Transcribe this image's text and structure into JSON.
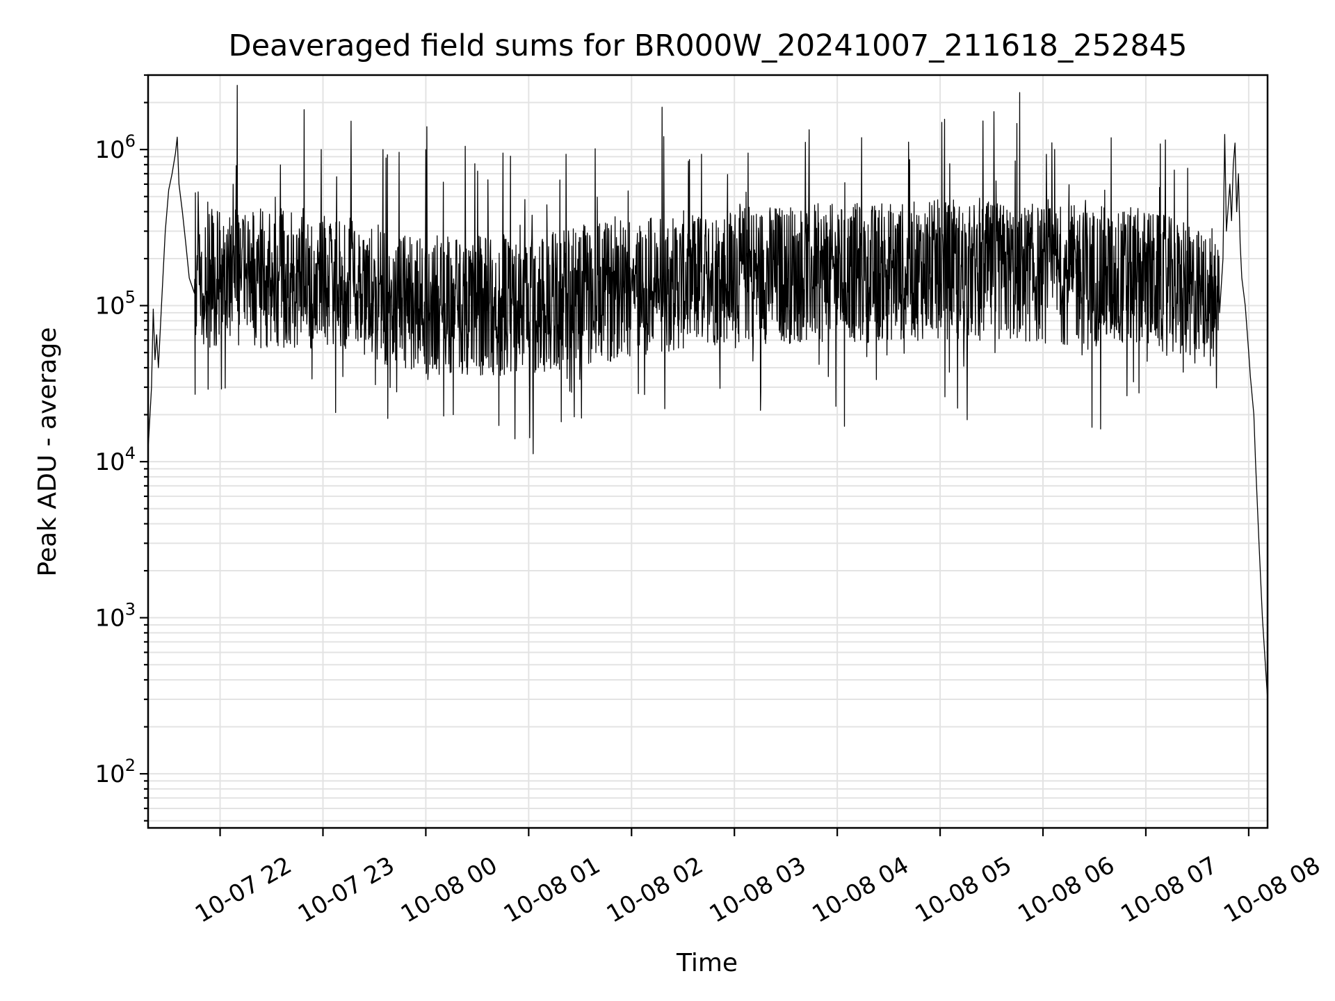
{
  "chart_data": {
    "type": "line",
    "title": "Deaveraged field sums for BR000W_20241007_211618_252845",
    "xlabel": "Time",
    "ylabel": "Peak ADU - average",
    "yscale": "log",
    "ylim": [
      45,
      3000000
    ],
    "xlim": [
      "2024-10-07T21:18:00",
      "2024-10-08T08:11:00"
    ],
    "x_ticks": [
      {
        "value": "2024-10-07T22:00:00",
        "label": "10-07 22"
      },
      {
        "value": "2024-10-07T23:00:00",
        "label": "10-07 23"
      },
      {
        "value": "2024-10-08T00:00:00",
        "label": "10-08 00"
      },
      {
        "value": "2024-10-08T01:00:00",
        "label": "10-08 01"
      },
      {
        "value": "2024-10-08T02:00:00",
        "label": "10-08 02"
      },
      {
        "value": "2024-10-08T03:00:00",
        "label": "10-08 03"
      },
      {
        "value": "2024-10-08T04:00:00",
        "label": "10-08 04"
      },
      {
        "value": "2024-10-08T05:00:00",
        "label": "10-08 05"
      },
      {
        "value": "2024-10-08T06:00:00",
        "label": "10-08 06"
      },
      {
        "value": "2024-10-08T07:00:00",
        "label": "10-08 07"
      },
      {
        "value": "2024-10-08T08:00:00",
        "label": "10-08 08"
      }
    ],
    "y_ticks": [
      {
        "value": 100,
        "base": "10",
        "exp": "2"
      },
      {
        "value": 1000,
        "base": "10",
        "exp": "3"
      },
      {
        "value": 10000,
        "base": "10",
        "exp": "4"
      },
      {
        "value": 100000,
        "base": "10",
        "exp": "5"
      },
      {
        "value": 1000000,
        "base": "10",
        "exp": "6"
      }
    ],
    "grid": true,
    "grid_minor_y": true,
    "line_color": "#000000",
    "series": [
      {
        "points": [
          [
            "2024-10-07T21:18:00",
            12000
          ],
          [
            "2024-10-07T21:20:00",
            30000
          ],
          [
            "2024-10-07T21:21:00",
            95000
          ],
          [
            "2024-10-07T21:22:00",
            45000
          ],
          [
            "2024-10-07T21:23:00",
            65000
          ],
          [
            "2024-10-07T21:24:00",
            40000
          ],
          [
            "2024-10-07T21:26:00",
            110000
          ],
          [
            "2024-10-07T21:28:00",
            300000
          ],
          [
            "2024-10-07T21:30:00",
            550000
          ],
          [
            "2024-10-07T21:32:00",
            700000
          ],
          [
            "2024-10-07T21:34:00",
            950000
          ],
          [
            "2024-10-07T21:35:00",
            1200000
          ],
          [
            "2024-10-07T21:36:00",
            600000
          ],
          [
            "2024-10-07T21:38:00",
            400000
          ],
          [
            "2024-10-07T21:40:00",
            250000
          ],
          [
            "2024-10-07T21:42:00",
            150000
          ],
          [
            "2024-10-07T21:45:00",
            120000
          ]
        ],
        "noise_from": "2024-10-07T21:45:00",
        "noise_to": "2024-10-08T07:43:00",
        "baseline": [
          [
            "2024-10-07T21:45:00",
            150000
          ],
          [
            "2024-10-07T23:00:00",
            150000
          ],
          [
            "2024-10-08T00:00:00",
            100000
          ],
          [
            "2024-10-08T01:00:00",
            100000
          ],
          [
            "2024-10-08T02:00:00",
            130000
          ],
          [
            "2024-10-08T03:00:00",
            160000
          ],
          [
            "2024-10-08T04:00:00",
            160000
          ],
          [
            "2024-10-08T05:00:00",
            170000
          ],
          [
            "2024-10-08T06:00:00",
            160000
          ],
          [
            "2024-10-08T07:00:00",
            150000
          ],
          [
            "2024-10-08T07:43:00",
            100000
          ]
        ],
        "spikes": [
          [
            "2024-10-07T22:49:00",
            1800000
          ],
          [
            "2024-10-07T22:59:00",
            1000000
          ],
          [
            "2024-10-07T23:35:00",
            1000000
          ],
          [
            "2024-10-08T00:00:00",
            1000000
          ],
          [
            "2024-10-08T00:23:00",
            1050000
          ],
          [
            "2024-10-08T00:45:00",
            950000
          ],
          [
            "2024-10-08T03:08:00",
            950000
          ],
          [
            "2024-10-08T00:52:00",
            14000
          ],
          [
            "2024-10-08T01:19:00",
            18000
          ],
          [
            "2024-10-07T23:43:00",
            28000
          ],
          [
            "2024-10-08T00:16:00",
            20000
          ]
        ],
        "tail": [
          [
            "2024-10-08T07:43:00",
            90000
          ],
          [
            "2024-10-08T07:45:00",
            200000
          ],
          [
            "2024-10-08T07:46:00",
            1250000
          ],
          [
            "2024-10-08T07:47:00",
            300000
          ],
          [
            "2024-10-08T07:49:00",
            600000
          ],
          [
            "2024-10-08T07:50:00",
            350000
          ],
          [
            "2024-10-08T07:51:00",
            800000
          ],
          [
            "2024-10-08T07:52:00",
            1100000
          ],
          [
            "2024-10-08T07:53:00",
            400000
          ],
          [
            "2024-10-08T07:54:00",
            700000
          ],
          [
            "2024-10-08T07:55:00",
            250000
          ],
          [
            "2024-10-08T07:56:00",
            150000
          ],
          [
            "2024-10-08T07:58:00",
            100000
          ],
          [
            "2024-10-08T08:00:00",
            50000
          ],
          [
            "2024-10-08T08:01:00",
            35000
          ],
          [
            "2024-10-08T08:03:00",
            20000
          ],
          [
            "2024-10-08T08:04:00",
            10000
          ],
          [
            "2024-10-08T08:06:00",
            3000
          ],
          [
            "2024-10-08T08:08:00",
            1000
          ]
        ]
      }
    ]
  }
}
